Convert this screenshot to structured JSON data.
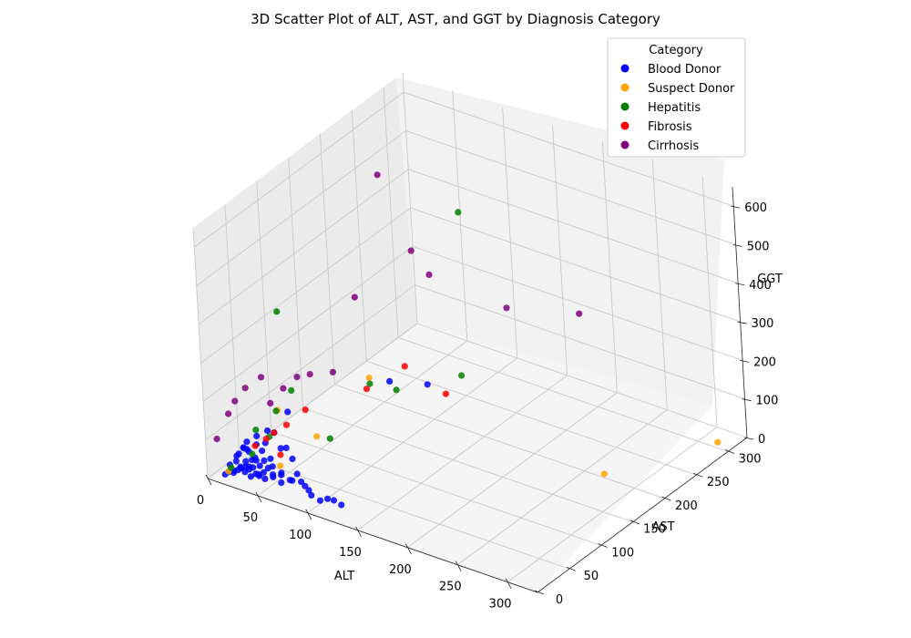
{
  "chart_data": {
    "type": "scatter",
    "title": "3D Scatter Plot of ALT, AST, and GGT by Diagnosis Category",
    "xlabel": "ALT",
    "ylabel": "AST",
    "zlabel": "GGT",
    "x_ticks": [
      0,
      50,
      100,
      150,
      200,
      250,
      300
    ],
    "y_ticks": [
      0,
      50,
      100,
      150,
      200,
      250,
      300
    ],
    "z_ticks": [
      0,
      100,
      200,
      300,
      400,
      500,
      600
    ],
    "xlim": [
      0,
      330
    ],
    "ylim": [
      0,
      330
    ],
    "zlim": [
      0,
      650
    ],
    "grid": true,
    "legend": {
      "title": "Category",
      "position": "top-right",
      "entries": [
        "Blood Donor",
        "Suspect Donor",
        "Hepatitis",
        "Fibrosis",
        "Cirrhosis"
      ]
    },
    "series": [
      {
        "name": "Blood Donor",
        "color": "#0000ff",
        "points": [
          [
            12,
            15,
            10
          ],
          [
            15,
            18,
            12
          ],
          [
            18,
            20,
            14
          ],
          [
            20,
            22,
            18
          ],
          [
            22,
            25,
            20
          ],
          [
            25,
            20,
            15
          ],
          [
            28,
            22,
            22
          ],
          [
            30,
            25,
            25
          ],
          [
            32,
            18,
            12
          ],
          [
            35,
            28,
            30
          ],
          [
            10,
            20,
            20
          ],
          [
            14,
            24,
            28
          ],
          [
            16,
            16,
            10
          ],
          [
            24,
            28,
            18
          ],
          [
            26,
            30,
            35
          ],
          [
            38,
            22,
            14
          ],
          [
            40,
            26,
            20
          ],
          [
            42,
            30,
            28
          ],
          [
            45,
            20,
            15
          ],
          [
            48,
            28,
            40
          ],
          [
            50,
            25,
            18
          ],
          [
            55,
            30,
            22
          ],
          [
            60,
            22,
            16
          ],
          [
            65,
            28,
            20
          ],
          [
            20,
            35,
            45
          ],
          [
            30,
            40,
            50
          ],
          [
            18,
            30,
            60
          ],
          [
            25,
            22,
            40
          ],
          [
            35,
            35,
            35
          ],
          [
            40,
            18,
            25
          ],
          [
            12,
            28,
            35
          ],
          [
            22,
            18,
            28
          ],
          [
            33,
            26,
            45
          ],
          [
            45,
            30,
            55
          ],
          [
            28,
            32,
            40
          ],
          [
            17,
            24,
            50
          ],
          [
            24,
            16,
            30
          ],
          [
            36,
            20,
            20
          ],
          [
            52,
            22,
            30
          ],
          [
            58,
            26,
            35
          ],
          [
            70,
            24,
            28
          ],
          [
            75,
            30,
            22
          ],
          [
            80,
            28,
            18
          ],
          [
            85,
            26,
            14
          ],
          [
            90,
            22,
            10
          ],
          [
            100,
            20,
            8
          ],
          [
            105,
            24,
            12
          ],
          [
            110,
            26,
            10
          ],
          [
            120,
            22,
            12
          ],
          [
            68,
            35,
            30
          ],
          [
            15,
            40,
            60
          ],
          [
            22,
            45,
            75
          ],
          [
            30,
            50,
            90
          ],
          [
            40,
            45,
            100
          ],
          [
            55,
            40,
            80
          ],
          [
            62,
            38,
            60
          ],
          [
            48,
            42,
            70
          ],
          [
            20,
            32,
            55
          ],
          [
            14,
            36,
            48
          ],
          [
            26,
            38,
            65
          ],
          [
            45,
            60,
            140
          ],
          [
            90,
            150,
            150
          ],
          [
            115,
            170,
            140
          ],
          [
            10,
            12,
            5
          ],
          [
            38,
            34,
            85
          ]
        ]
      },
      {
        "name": "Suspect Donor",
        "color": "#ffa500",
        "points": [
          [
            15,
            10,
            20
          ],
          [
            60,
            22,
            60
          ],
          [
            80,
            50,
            120
          ],
          [
            110,
            90,
            250
          ],
          [
            55,
            30,
            190
          ],
          [
            270,
            200,
            10
          ],
          [
            320,
            300,
            15
          ]
        ]
      },
      {
        "name": "Hepatitis",
        "color": "#008000",
        "points": [
          [
            15,
            14,
            25
          ],
          [
            25,
            40,
            100
          ],
          [
            35,
            45,
            85
          ],
          [
            30,
            25,
            60
          ],
          [
            40,
            50,
            150
          ],
          [
            50,
            60,
            200
          ],
          [
            80,
            70,
            90
          ],
          [
            90,
            120,
            180
          ],
          [
            110,
            130,
            170
          ],
          [
            130,
            200,
            140
          ],
          [
            60,
            30,
            450
          ],
          [
            170,
            150,
            660
          ]
        ]
      },
      {
        "name": "Fibrosis",
        "color": "#ff0000",
        "points": [
          [
            30,
            30,
            75
          ],
          [
            35,
            40,
            85
          ],
          [
            40,
            45,
            100
          ],
          [
            50,
            38,
            60
          ],
          [
            60,
            35,
            150
          ],
          [
            70,
            50,
            180
          ],
          [
            100,
            100,
            200
          ],
          [
            120,
            130,
            240
          ],
          [
            140,
            160,
            150
          ]
        ]
      },
      {
        "name": "Cirrhosis",
        "color": "#800080",
        "points": [
          [
            5,
            10,
            95
          ],
          [
            10,
            22,
            150
          ],
          [
            12,
            30,
            175
          ],
          [
            20,
            35,
            210
          ],
          [
            30,
            45,
            235
          ],
          [
            40,
            42,
            180
          ],
          [
            50,
            48,
            220
          ],
          [
            60,
            55,
            250
          ],
          [
            70,
            60,
            260
          ],
          [
            80,
            80,
            250
          ],
          [
            100,
            90,
            450
          ],
          [
            140,
            120,
            570
          ],
          [
            130,
            160,
            450
          ],
          [
            110,
            120,
            740
          ],
          [
            180,
            200,
            360
          ],
          [
            220,
            250,
            320
          ]
        ]
      }
    ]
  }
}
